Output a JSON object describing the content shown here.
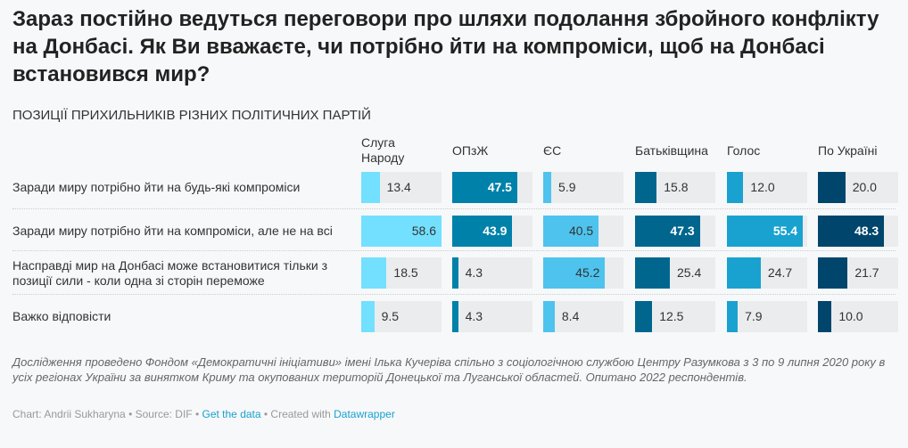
{
  "title": "Зараз постійно ведуться переговори про шляхи подолання збройного конфлікту на Донбасі. Як Ви вважаєте, чи потрібно йти на компроміси, щоб на Донбасі встановився мир?",
  "subtitle": "ПОЗИЦІЇ ПРИХИЛЬНИКІВ РІЗНИХ ПОЛІТИЧНИХ ПАРТІЙ",
  "chart_data": {
    "type": "table",
    "max": 58.6,
    "columns": [
      {
        "name": "Слуга Народу",
        "color": "#73e0ff"
      },
      {
        "name": "ОПзЖ",
        "color": "#0081aa"
      },
      {
        "name": "ЄС",
        "color": "#4ec3ee"
      },
      {
        "name": "Батьківщина",
        "color": "#00668e"
      },
      {
        "name": "Голос",
        "color": "#19a2d0"
      },
      {
        "name": "По Україні",
        "color": "#00456b"
      }
    ],
    "rows": [
      {
        "label": "Заради миру потрібно йти на будь-які компроміси",
        "values": [
          "13.4",
          "47.5",
          "5.9",
          "15.8",
          "12.0",
          "20.0"
        ]
      },
      {
        "label": "Заради миру потрібно йти на компроміси, але не на всі",
        "values": [
          "58.6",
          "43.9",
          "40.5",
          "47.3",
          "55.4",
          "48.3"
        ]
      },
      {
        "label": "Насправді мир на Донбасі може встановитися тільки з позиції сили - коли одна зі сторін переможе",
        "values": [
          "18.5",
          "4.3",
          "45.2",
          "25.4",
          "24.7",
          "21.7"
        ]
      },
      {
        "label": "Важко відповісти",
        "values": [
          "9.5",
          "4.3",
          "8.4",
          "12.5",
          "7.9",
          "10.0"
        ]
      }
    ]
  },
  "notes": "Дослідження проведено Фондом «Демократичні ініціативи» імені Ілька Кучеріва спільно з соціологічною службою Центру Разумкова з 3 по 9 липня 2020 року в усіх регіонах України за винятком Криму та окупованих територій Донецької та Луганської областей. Опитано 2022 респондентів.",
  "byline": {
    "prefix": "Chart: Andrii Sukharyna • Source: DIF • ",
    "get_data": "Get the data",
    "middle": " • Created with ",
    "datawrapper": "Datawrapper"
  }
}
